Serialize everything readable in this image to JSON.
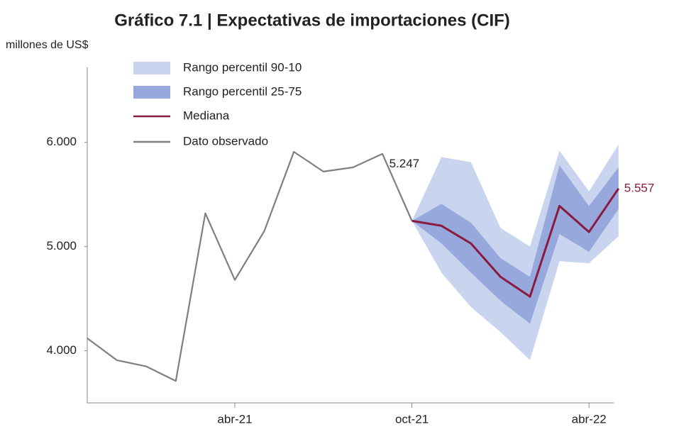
{
  "chart_data": {
    "type": "fan",
    "title": "Gráfico 7.1 | Expectativas de importaciones (CIF)",
    "y_label": "millones de US$",
    "categories": [
      null,
      null,
      null,
      null,
      null,
      "abr-21",
      null,
      null,
      null,
      null,
      null,
      "oct-21",
      null,
      null,
      null,
      null,
      null,
      "abr-22",
      null
    ],
    "ylim": [
      3500,
      6720
    ],
    "yticks": [
      {
        "value": 4000,
        "label": "4.000"
      },
      {
        "value": 5000,
        "label": "5.000"
      },
      {
        "value": 6000,
        "label": "6.000"
      }
    ],
    "bands": [
      {
        "name": "Rango percentil 90-10",
        "color": "#c9d5ef",
        "upper": [
          null,
          null,
          null,
          null,
          null,
          null,
          null,
          null,
          null,
          null,
          null,
          5247,
          5860,
          5810,
          5180,
          5000,
          5920,
          5530,
          5980
        ],
        "lower": [
          null,
          null,
          null,
          null,
          null,
          null,
          null,
          null,
          null,
          null,
          null,
          5247,
          4750,
          4420,
          4180,
          3910,
          4860,
          4840,
          5100
        ]
      },
      {
        "name": "Rango percentil 25-75",
        "color": "#97a9dc",
        "upper": [
          null,
          null,
          null,
          null,
          null,
          null,
          null,
          null,
          null,
          null,
          null,
          5247,
          5410,
          5230,
          4890,
          4710,
          5780,
          5390,
          5760
        ],
        "lower": [
          null,
          null,
          null,
          null,
          null,
          null,
          null,
          null,
          null,
          null,
          null,
          5247,
          5030,
          4750,
          4480,
          4260,
          5120,
          4950,
          5360
        ]
      }
    ],
    "series": [
      {
        "name": "Mediana",
        "color": "#8b1a3f",
        "values": [
          null,
          null,
          null,
          null,
          null,
          null,
          null,
          null,
          null,
          null,
          null,
          5247,
          5200,
          5030,
          4710,
          4520,
          5390,
          5140,
          5557
        ],
        "value_labels": [
          null,
          null,
          null,
          null,
          null,
          null,
          null,
          null,
          null,
          null,
          null,
          null,
          null,
          null,
          null,
          null,
          null,
          null,
          "5.557"
        ]
      },
      {
        "name": "Dato observado",
        "color": "#7f7f7f",
        "values": [
          4120,
          3910,
          3850,
          3710,
          5320,
          4680,
          5150,
          5910,
          5720,
          5760,
          5890,
          5247,
          null,
          null,
          null,
          null,
          null,
          null,
          null
        ],
        "value_labels": [
          null,
          null,
          null,
          null,
          null,
          null,
          null,
          null,
          null,
          null,
          null,
          "5.247",
          null,
          null,
          null,
          null,
          null,
          null,
          null
        ]
      }
    ]
  }
}
